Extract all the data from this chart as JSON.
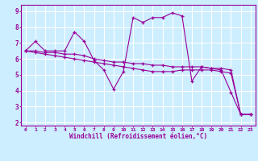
{
  "background_color": "#cceeff",
  "grid_color": "#ffffff",
  "line_color": "#990099",
  "marker": "+",
  "xlabel": "Windchill (Refroidissement éolien,°C)",
  "xlim": [
    -0.5,
    23.5
  ],
  "ylim": [
    1.8,
    9.4
  ],
  "xticks": [
    0,
    1,
    2,
    3,
    4,
    5,
    6,
    7,
    8,
    9,
    10,
    11,
    12,
    13,
    14,
    15,
    16,
    17,
    18,
    19,
    20,
    21,
    22,
    23
  ],
  "yticks": [
    2,
    3,
    4,
    5,
    6,
    7,
    8,
    9
  ],
  "line1_x": [
    0,
    1,
    2,
    3,
    4,
    5,
    6,
    7,
    8,
    9,
    10,
    11,
    12,
    13,
    14,
    15,
    16,
    17,
    18,
    19,
    20,
    21,
    22,
    23
  ],
  "line1_y": [
    6.5,
    7.1,
    6.5,
    6.5,
    6.5,
    7.7,
    7.1,
    5.9,
    5.3,
    4.1,
    5.2,
    8.6,
    8.3,
    8.6,
    8.6,
    8.9,
    8.7,
    4.6,
    5.5,
    5.4,
    5.3,
    3.9,
    2.5,
    2.5
  ],
  "line2_x": [
    0,
    1,
    2,
    3,
    4,
    5,
    6,
    7,
    8,
    9,
    10,
    11,
    12,
    13,
    14,
    15,
    16,
    17,
    18,
    19,
    20,
    21,
    22,
    23
  ],
  "line2_y": [
    6.5,
    6.5,
    6.4,
    6.4,
    6.3,
    6.3,
    6.2,
    6.0,
    5.9,
    5.8,
    5.8,
    5.7,
    5.7,
    5.6,
    5.6,
    5.5,
    5.5,
    5.5,
    5.5,
    5.4,
    5.4,
    5.3,
    2.5,
    2.5
  ],
  "line3_x": [
    0,
    1,
    2,
    3,
    4,
    5,
    6,
    7,
    8,
    9,
    10,
    11,
    12,
    13,
    14,
    15,
    16,
    17,
    18,
    19,
    20,
    21,
    22,
    23
  ],
  "line3_y": [
    6.5,
    6.4,
    6.3,
    6.2,
    6.1,
    6.0,
    5.9,
    5.8,
    5.7,
    5.6,
    5.5,
    5.4,
    5.3,
    5.2,
    5.2,
    5.2,
    5.3,
    5.3,
    5.3,
    5.3,
    5.2,
    5.1,
    2.5,
    2.5
  ]
}
